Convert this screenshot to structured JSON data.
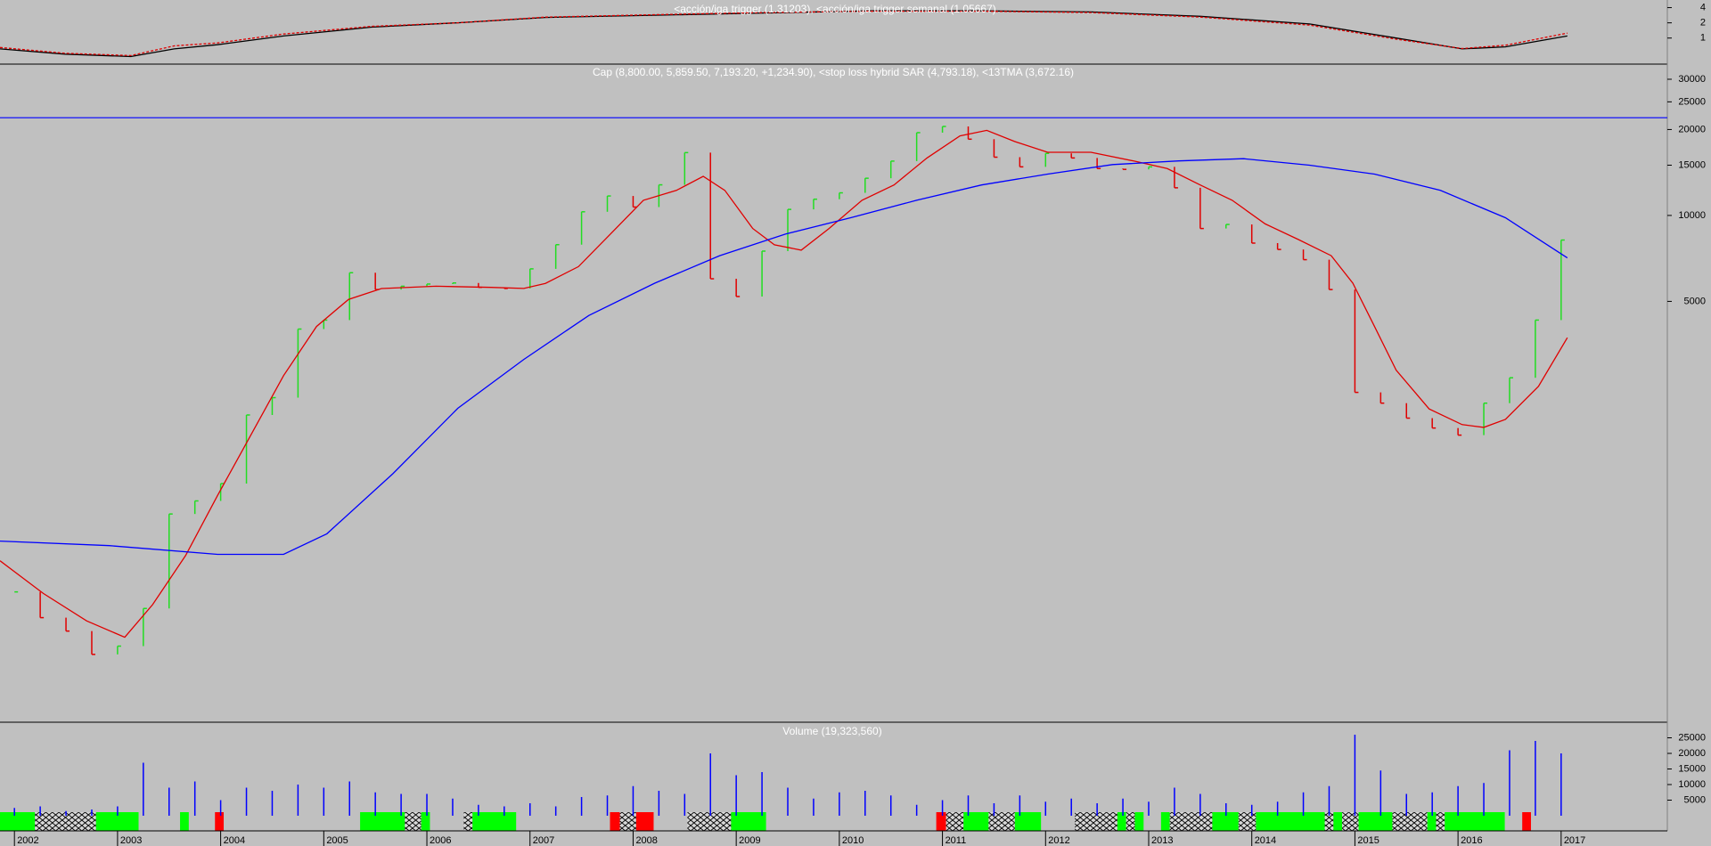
{
  "chart_data": [
    {
      "type": "line",
      "title": "<acción/iga trigger (1.31203), <acción/iga trigger semanal (1.05667)",
      "log": true,
      "xlim": [
        2001.86,
        2018.03
      ],
      "ylim": [
        0.305,
        5.66
      ],
      "yticks": [
        4,
        2,
        1
      ],
      "series": [
        {
          "color": "#000000",
          "dash": false,
          "x": [
            2001.86,
            2002.49,
            2003.13,
            2003.55,
            2003.97,
            2004.61,
            2005.46,
            2006.3,
            2007.15,
            2008.21,
            2009.26,
            2010.32,
            2011.38,
            2012.44,
            2013.5,
            2014.56,
            2015.4,
            2016.04,
            2016.46,
            2017.06
          ],
          "values": [
            0.61,
            0.48,
            0.43,
            0.61,
            0.74,
            1.1,
            1.64,
            2.0,
            2.56,
            2.83,
            3.13,
            3.45,
            3.45,
            3.28,
            2.69,
            1.9,
            1.0,
            0.61,
            0.67,
            1.1
          ]
        },
        {
          "color": "#e00000",
          "dash": true,
          "x": [
            2001.86,
            2002.49,
            2003.13,
            2003.55,
            2003.97,
            2004.61,
            2005.46,
            2006.3,
            2007.15,
            2008.21,
            2009.26,
            2010.32,
            2011.38,
            2012.44,
            2013.5,
            2014.56,
            2015.4,
            2016.04,
            2016.46,
            2017.06
          ],
          "values": [
            0.65,
            0.5,
            0.45,
            0.7,
            0.8,
            1.2,
            1.7,
            2.0,
            2.6,
            2.9,
            3.2,
            3.4,
            3.4,
            3.2,
            2.6,
            1.8,
            0.95,
            0.62,
            0.72,
            1.25
          ]
        }
      ]
    },
    {
      "type": "price",
      "title": "Cap (8,800.00, 5,859.50, 7,193.20, +1,234.90), <stop loss hybrid SAR (4,793.18), <13TMA (3,672.16)",
      "log": true,
      "xlim": [
        2001.86,
        2018.03
      ],
      "ylim": [
        169,
        33650
      ],
      "yticks": [
        30000,
        25000,
        20000,
        15000,
        10000,
        5000
      ],
      "up_color": "#22dd22",
      "down_color": "#e00000",
      "hline": 22000,
      "hline_color": "#0000ff",
      "x": [
        2002.0,
        2002.25,
        2002.5,
        2002.75,
        2003.0,
        2003.25,
        2003.5,
        2003.75,
        2004.0,
        2004.25,
        2004.5,
        2004.75,
        2005.0,
        2005.25,
        2005.5,
        2005.75,
        2006.0,
        2006.25,
        2006.5,
        2006.75,
        2007.0,
        2007.25,
        2007.5,
        2007.75,
        2008.0,
        2008.25,
        2008.5,
        2008.75,
        2009.0,
        2009.25,
        2009.5,
        2009.75,
        2010.0,
        2010.25,
        2010.5,
        2010.75,
        2011.0,
        2011.25,
        2011.5,
        2011.75,
        2012.0,
        2012.25,
        2012.5,
        2012.75,
        2013.0,
        2013.25,
        2013.5,
        2013.75,
        2014.0,
        2014.25,
        2014.5,
        2014.75,
        2015.0,
        2015.25,
        2015.5,
        2015.75,
        2016.0,
        2016.25,
        2016.5,
        2016.75,
        2017.0
      ],
      "values": [
        480,
        390,
        350,
        290,
        310,
        420,
        900,
        1000,
        1150,
        2000,
        2300,
        4000,
        4300,
        6300,
        5500,
        5650,
        5750,
        5800,
        5600,
        5550,
        6500,
        7900,
        10300,
        11700,
        10700,
        12800,
        16600,
        6000,
        5200,
        7500,
        10500,
        11400,
        12000,
        13500,
        15500,
        19500,
        20500,
        18500,
        16000,
        14800,
        16500,
        15900,
        14600,
        14500,
        14800,
        12500,
        9000,
        9300,
        8000,
        7600,
        7000,
        5500,
        2400,
        2200,
        1950,
        1800,
        1700,
        2200,
        2700,
        4300,
        8200
      ],
      "series": [
        {
          "color": "#e00000",
          "x": [
            2001.86,
            2002.28,
            2002.7,
            2003.07,
            2003.34,
            2003.66,
            2003.97,
            2004.29,
            2004.61,
            2004.93,
            2005.24,
            2005.56,
            2006.09,
            2006.62,
            2006.94,
            2007.15,
            2007.47,
            2007.78,
            2008.1,
            2008.42,
            2008.68,
            2008.89,
            2009.16,
            2009.37,
            2009.63,
            2009.9,
            2010.22,
            2010.53,
            2010.85,
            2011.17,
            2011.43,
            2011.7,
            2012.02,
            2012.44,
            2012.86,
            2013.18,
            2013.5,
            2013.81,
            2014.13,
            2014.45,
            2014.77,
            2014.98,
            2015.19,
            2015.4,
            2015.72,
            2016.04,
            2016.25,
            2016.46,
            2016.78,
            2017.06
          ],
          "values": [
            617,
            474,
            380,
            333,
            433,
            644,
            1045,
            1694,
            2748,
            4083,
            5080,
            5546,
            5650,
            5600,
            5550,
            5780,
            6620,
            8610,
            11300,
            12240,
            13710,
            12240,
            9000,
            7890,
            7560,
            9000,
            11300,
            12790,
            15900,
            19000,
            19860,
            18150,
            16640,
            16640,
            15500,
            14590,
            12790,
            11300,
            9340,
            8240,
            7230,
            5790,
            4083,
            2870,
            2100,
            1850,
            1810,
            1930,
            2520,
            3730
          ]
        },
        {
          "color": "#0000ff",
          "x": [
            2001.86,
            2002.92,
            2003.97,
            2004.61,
            2005.03,
            2005.67,
            2006.3,
            2006.94,
            2007.57,
            2008.21,
            2008.84,
            2009.48,
            2010.11,
            2010.75,
            2011.38,
            2012.02,
            2012.65,
            2013.29,
            2013.92,
            2014.56,
            2015.19,
            2015.83,
            2016.46,
            2017.06
          ],
          "values": [
            723,
            697,
            650,
            650,
            767,
            1245,
            2110,
            3130,
            4460,
            5790,
            7230,
            8610,
            9820,
            11300,
            12790,
            13960,
            15070,
            15520,
            15800,
            15000,
            13960,
            12240,
            9820,
            7100
          ]
        }
      ]
    },
    {
      "type": "bar",
      "title": "Volume (19,323,560)",
      "color": "#0000ff",
      "xlim": [
        2001.86,
        2018.03
      ],
      "ylim": [
        0,
        30000
      ],
      "yticks": [
        25000,
        20000,
        15000,
        10000,
        5000
      ],
      "xticks": [
        2002,
        2003,
        2004,
        2005,
        2006,
        2007,
        2008,
        2009,
        2010,
        2011,
        2012,
        2013,
        2014,
        2015,
        2016,
        2017
      ],
      "x": [
        2002.0,
        2002.25,
        2002.5,
        2002.75,
        2003.0,
        2003.25,
        2003.5,
        2003.75,
        2004.0,
        2004.25,
        2004.5,
        2004.75,
        2005.0,
        2005.25,
        2005.5,
        2005.75,
        2006.0,
        2006.25,
        2006.5,
        2006.75,
        2007.0,
        2007.25,
        2007.5,
        2007.75,
        2008.0,
        2008.25,
        2008.5,
        2008.75,
        2009.0,
        2009.25,
        2009.5,
        2009.75,
        2010.0,
        2010.25,
        2010.5,
        2010.75,
        2011.0,
        2011.25,
        2011.5,
        2011.75,
        2012.0,
        2012.25,
        2012.5,
        2012.75,
        2013.0,
        2013.25,
        2013.5,
        2013.75,
        2014.0,
        2014.25,
        2014.5,
        2014.75,
        2015.0,
        2015.25,
        2015.5,
        2015.75,
        2016.0,
        2016.25,
        2016.5,
        2016.75,
        2017.0
      ],
      "values": [
        2500,
        3000,
        1500,
        2000,
        3000,
        17000,
        9000,
        11000,
        5000,
        9000,
        8000,
        10000,
        9000,
        11000,
        7500,
        7000,
        7000,
        5500,
        3500,
        3000,
        4000,
        3000,
        6000,
        6500,
        9500,
        8000,
        7000,
        20000,
        13000,
        14000,
        9000,
        5500,
        7500,
        8000,
        6500,
        3500,
        5000,
        6500,
        4000,
        6500,
        4500,
        5500,
        4000,
        5500,
        4500,
        9000,
        7000,
        4000,
        3500,
        4500,
        7500,
        9500,
        26000,
        14500,
        7000,
        7500,
        9500,
        10500,
        21000,
        24000,
        20000
      ]
    }
  ]
}
